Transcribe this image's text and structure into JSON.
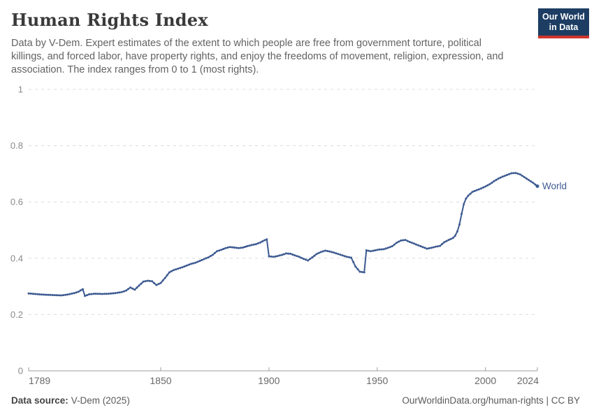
{
  "header": {
    "title": "Human Rights Index",
    "subtitle": "Data by V-Dem. Expert estimates of the extent to which people are free from government torture, political killings, and forced labor, have property rights, and enjoy the freedoms of movement, religion, expression, and association. The index ranges from 0 to 1 (most rights)."
  },
  "logo": {
    "line1": "Our World",
    "line2": "in Data",
    "bg_color": "#1d3d63",
    "accent_color": "#d0342c"
  },
  "chart_data": {
    "type": "line",
    "title": "Human Rights Index",
    "xlabel": "",
    "ylabel": "",
    "xlim": [
      1789,
      2024
    ],
    "ylim": [
      0,
      1
    ],
    "grid": "horizontal-dashed",
    "legend_position": "end-of-line",
    "x_ticks": [
      {
        "value": 1789,
        "label": "1789"
      },
      {
        "value": 1850,
        "label": "1850"
      },
      {
        "value": 1900,
        "label": "1900"
      },
      {
        "value": 1950,
        "label": "1950"
      },
      {
        "value": 2000,
        "label": "2000"
      },
      {
        "value": 2024,
        "label": "2024"
      }
    ],
    "y_ticks": [
      {
        "value": 0,
        "label": "0"
      },
      {
        "value": 0.2,
        "label": "0.2"
      },
      {
        "value": 0.4,
        "label": "0.4"
      },
      {
        "value": 0.6,
        "label": "0.6"
      },
      {
        "value": 0.8,
        "label": "0.8"
      },
      {
        "value": 1,
        "label": "1"
      }
    ],
    "series": [
      {
        "name": "World",
        "color": "#3d5a91",
        "points": [
          [
            1789,
            0.275
          ],
          [
            1792,
            0.273
          ],
          [
            1795,
            0.271
          ],
          [
            1798,
            0.27
          ],
          [
            1801,
            0.269
          ],
          [
            1804,
            0.268
          ],
          [
            1807,
            0.271
          ],
          [
            1810,
            0.276
          ],
          [
            1812,
            0.281
          ],
          [
            1814,
            0.29
          ],
          [
            1815,
            0.266
          ],
          [
            1817,
            0.272
          ],
          [
            1820,
            0.274
          ],
          [
            1823,
            0.273
          ],
          [
            1826,
            0.274
          ],
          [
            1829,
            0.276
          ],
          [
            1832,
            0.28
          ],
          [
            1834,
            0.285
          ],
          [
            1836,
            0.296
          ],
          [
            1838,
            0.288
          ],
          [
            1840,
            0.303
          ],
          [
            1842,
            0.317
          ],
          [
            1844,
            0.32
          ],
          [
            1846,
            0.318
          ],
          [
            1848,
            0.305
          ],
          [
            1850,
            0.312
          ],
          [
            1852,
            0.33
          ],
          [
            1854,
            0.35
          ],
          [
            1856,
            0.358
          ],
          [
            1858,
            0.363
          ],
          [
            1860,
            0.368
          ],
          [
            1862,
            0.374
          ],
          [
            1864,
            0.38
          ],
          [
            1866,
            0.384
          ],
          [
            1868,
            0.39
          ],
          [
            1870,
            0.397
          ],
          [
            1872,
            0.403
          ],
          [
            1874,
            0.412
          ],
          [
            1876,
            0.425
          ],
          [
            1878,
            0.43
          ],
          [
            1880,
            0.436
          ],
          [
            1882,
            0.44
          ],
          [
            1884,
            0.438
          ],
          [
            1886,
            0.436
          ],
          [
            1888,
            0.438
          ],
          [
            1890,
            0.443
          ],
          [
            1892,
            0.447
          ],
          [
            1894,
            0.45
          ],
          [
            1896,
            0.456
          ],
          [
            1898,
            0.464
          ],
          [
            1899,
            0.467
          ],
          [
            1900,
            0.407
          ],
          [
            1902,
            0.405
          ],
          [
            1904,
            0.408
          ],
          [
            1906,
            0.412
          ],
          [
            1908,
            0.417
          ],
          [
            1910,
            0.416
          ],
          [
            1912,
            0.41
          ],
          [
            1914,
            0.405
          ],
          [
            1916,
            0.398
          ],
          [
            1918,
            0.392
          ],
          [
            1920,
            0.403
          ],
          [
            1922,
            0.415
          ],
          [
            1924,
            0.422
          ],
          [
            1926,
            0.427
          ],
          [
            1928,
            0.424
          ],
          [
            1930,
            0.42
          ],
          [
            1932,
            0.415
          ],
          [
            1934,
            0.41
          ],
          [
            1936,
            0.405
          ],
          [
            1938,
            0.402
          ],
          [
            1940,
            0.37
          ],
          [
            1942,
            0.352
          ],
          [
            1944,
            0.35
          ],
          [
            1945,
            0.428
          ],
          [
            1947,
            0.425
          ],
          [
            1949,
            0.428
          ],
          [
            1951,
            0.431
          ],
          [
            1953,
            0.432
          ],
          [
            1955,
            0.437
          ],
          [
            1957,
            0.443
          ],
          [
            1959,
            0.455
          ],
          [
            1961,
            0.463
          ],
          [
            1963,
            0.465
          ],
          [
            1965,
            0.458
          ],
          [
            1967,
            0.452
          ],
          [
            1969,
            0.446
          ],
          [
            1971,
            0.44
          ],
          [
            1973,
            0.434
          ],
          [
            1975,
            0.437
          ],
          [
            1977,
            0.441
          ],
          [
            1979,
            0.444
          ],
          [
            1981,
            0.457
          ],
          [
            1983,
            0.465
          ],
          [
            1985,
            0.472
          ],
          [
            1986,
            0.48
          ],
          [
            1987,
            0.495
          ],
          [
            1988,
            0.52
          ],
          [
            1989,
            0.558
          ],
          [
            1990,
            0.592
          ],
          [
            1991,
            0.612
          ],
          [
            1992,
            0.622
          ],
          [
            1994,
            0.636
          ],
          [
            1996,
            0.642
          ],
          [
            1998,
            0.648
          ],
          [
            2000,
            0.655
          ],
          [
            2002,
            0.663
          ],
          [
            2004,
            0.674
          ],
          [
            2006,
            0.683
          ],
          [
            2008,
            0.69
          ],
          [
            2010,
            0.696
          ],
          [
            2012,
            0.702
          ],
          [
            2014,
            0.703
          ],
          [
            2016,
            0.698
          ],
          [
            2018,
            0.688
          ],
          [
            2020,
            0.678
          ],
          [
            2022,
            0.668
          ],
          [
            2024,
            0.656
          ]
        ]
      }
    ]
  },
  "footer": {
    "source_label": "Data source:",
    "source_value": "V-Dem (2025)",
    "url_text": "OurWorldinData.org/human-rights",
    "separator": " | ",
    "license_text": "CC BY"
  }
}
